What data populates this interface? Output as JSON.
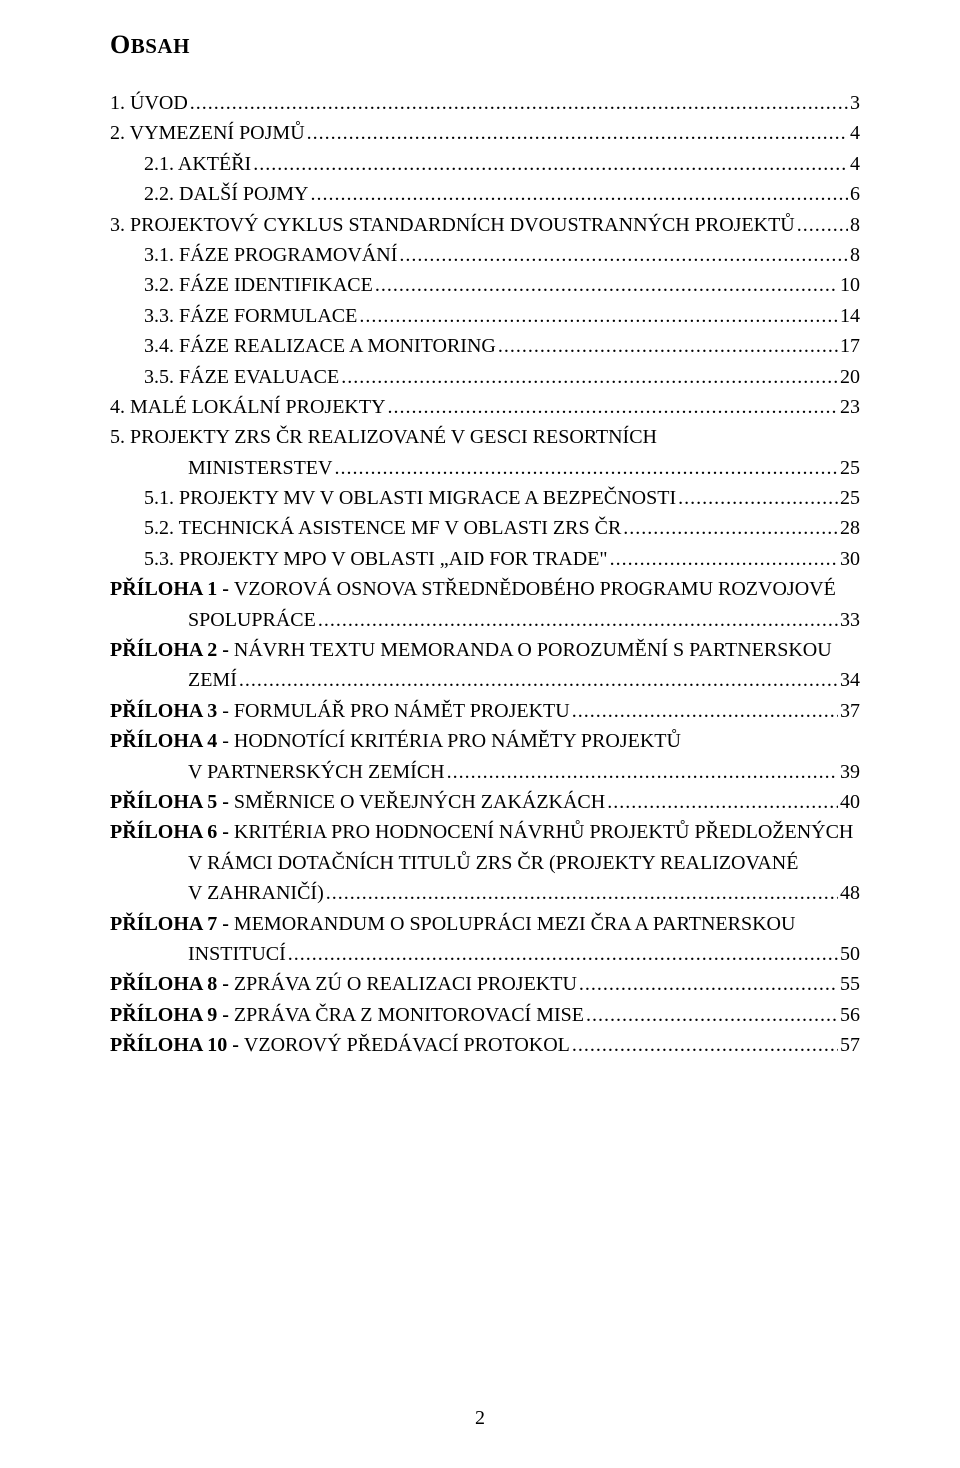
{
  "heading_main": "O",
  "heading_rest": "BSAH",
  "footer_page": "2",
  "entries": [
    {
      "label": "1.   ÚVOD",
      "page": "3",
      "indent": 0
    },
    {
      "label": "2.   VYMEZENÍ POJMŮ",
      "page": "4",
      "indent": 0
    },
    {
      "label": "2.1.  AKTÉŘI",
      "page": "4",
      "indent": 1
    },
    {
      "label": "2.2.  DALŠÍ POJMY",
      "page": "6",
      "indent": 1
    },
    {
      "label": "3.   PROJEKTOVÝ CYKLUS STANDARDNÍCH DVOUSTRANNÝCH PROJEKTŮ",
      "page": "8",
      "indent": 0
    },
    {
      "label": "3.1.  FÁZE PROGRAMOVÁNÍ",
      "page": "8",
      "indent": 1
    },
    {
      "label": "3.2.  FÁZE IDENTIFIKACE",
      "page": "10",
      "indent": 1
    },
    {
      "label": "3.3.  FÁZE FORMULACE",
      "page": "14",
      "indent": 1
    },
    {
      "label": "3.4.  FÁZE REALIZACE A MONITORING",
      "page": "17",
      "indent": 1
    },
    {
      "label": "3.5.  FÁZE EVALUACE",
      "page": "20",
      "indent": 1
    },
    {
      "label": "4.   MALÉ LOKÁLNÍ PROJEKTY",
      "page": "23",
      "indent": 0
    },
    {
      "label": "5.   PROJEKTY ZRS ČR REALIZOVANÉ V GESCI RESORTNÍCH",
      "indent": 0,
      "nowrap_only": true
    },
    {
      "label": "MINISTERSTEV",
      "page": "25",
      "indent": 0,
      "cont": true
    },
    {
      "label": "5.1.  PROJEKTY MV V OBLASTI MIGRACE A BEZPEČNOSTI",
      "page": "25",
      "indent": 1
    },
    {
      "label": "5.2.  TECHNICKÁ ASISTENCE MF V OBLASTI ZRS ČR",
      "page": "28",
      "indent": 1
    },
    {
      "label": "5.3.  PROJEKTY MPO V OBLASTI „AID FOR TRADE\"",
      "page": "30",
      "indent": 1
    },
    {
      "label_html": "<b>PŘÍLOHA 1 - </b>VZOROVÁ OSNOVA STŘEDNĚDOBÉHO PROGRAMU ROZVOJOVÉ",
      "indent": 0,
      "nowrap_only": true
    },
    {
      "label": "SPOLUPRÁCE",
      "page": "33",
      "indent": 0,
      "cont": true
    },
    {
      "label_html": "<b>PŘÍLOHA 2 - </b>NÁVRH TEXTU MEMORANDA O POROZUMĚNÍ S PARTNERSKOU",
      "indent": 0,
      "nowrap_only": true
    },
    {
      "label": "ZEMÍ",
      "page": "34",
      "indent": 0,
      "cont": true
    },
    {
      "label_html": "<b>PŘÍLOHA 3</b>  -  FORMULÁŘ PRO NÁMĚT PROJEKTU",
      "page": "37",
      "indent": 0
    },
    {
      "label_html": "<b>PŘÍLOHA 4</b>  -  HODNOTÍCÍ KRITÉRIA PRO NÁMĚTY PROJEKTŮ",
      "indent": 0,
      "nowrap_only": true
    },
    {
      "label": "V PARTNERSKÝCH ZEMÍCH",
      "page": "39",
      "indent": 0,
      "cont": true
    },
    {
      "label_html": "<b>PŘÍLOHA 5 - </b>SMĚRNICE O VEŘEJNÝCH ZAKÁZKÁCH",
      "page": "40",
      "indent": 0
    },
    {
      "label_html": "<b>PŘÍLOHA 6 - </b>KRITÉRIA PRO HODNOCENÍ NÁVRHŮ PROJEKTŮ PŘEDLOŽENÝCH",
      "indent": 0,
      "nowrap_only": true
    },
    {
      "label": "V RÁMCI DOTAČNÍCH TITULŮ ZRS ČR (PROJEKTY REALIZOVANÉ",
      "indent": 0,
      "cont": true,
      "nowrap_only": true
    },
    {
      "label": "V ZAHRANIČÍ)",
      "page": "48",
      "indent": 0,
      "cont": true
    },
    {
      "label_html": "<b>PŘÍLOHA 7 -</b>  MEMORANDUM O SPOLUPRÁCI MEZI ČRA A PARTNERSKOU",
      "indent": 0,
      "nowrap_only": true
    },
    {
      "label": "INSTITUCÍ",
      "page": "50",
      "indent": 0,
      "cont": true
    },
    {
      "label_html": "<b>PŘÍLOHA 8 - </b>ZPRÁVA ZÚ O REALIZACI PROJEKTU",
      "page": "55",
      "indent": 0
    },
    {
      "label_html": "<b>PŘÍLOHA 9 - </b>ZPRÁVA ČRA Z MONITOROVACÍ MISE",
      "page": "56",
      "indent": 0
    },
    {
      "label_html": "<b>PŘÍLOHA 10 - </b>VZOROVÝ PŘEDÁVACÍ PROTOKOL",
      "page": "57",
      "indent": 0
    }
  ]
}
